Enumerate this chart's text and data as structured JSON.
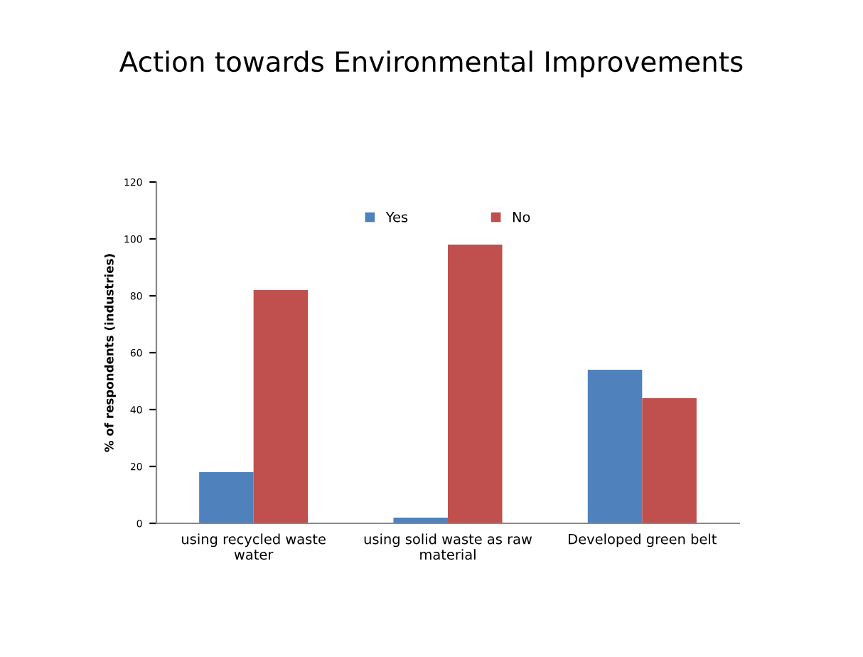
{
  "chart_data": {
    "type": "bar",
    "title": "Action towards Environmental Improvements",
    "ylabel": "% of respondents (industries)",
    "categories": [
      "using recycled waste water",
      "using solid waste as raw material",
      "Developed green belt"
    ],
    "series": [
      {
        "name": "Yes",
        "color": "#4f81bd",
        "values": [
          18,
          2,
          54
        ]
      },
      {
        "name": "No",
        "color": "#c0504d",
        "values": [
          82,
          98,
          44
        ]
      }
    ],
    "ylim": [
      0,
      120
    ],
    "yticks": [
      0,
      20,
      40,
      60,
      80,
      100,
      120
    ],
    "grid": false,
    "legend": "top"
  }
}
